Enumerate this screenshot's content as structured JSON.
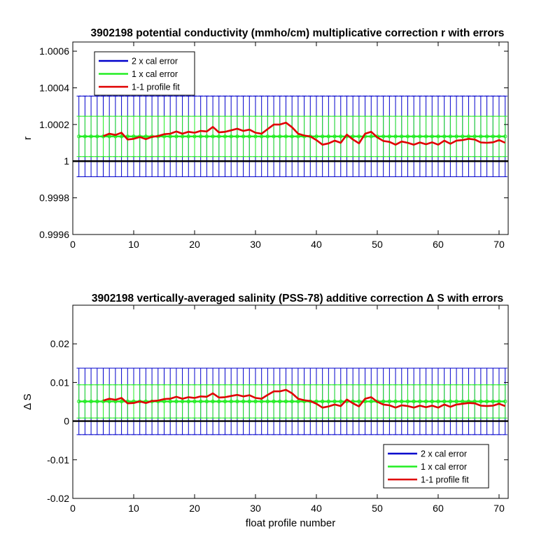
{
  "colors": {
    "two_x_cal_error": "#0000cc",
    "one_x_cal_error": "#22ee22",
    "profile_fit": "#e00000",
    "baseline": "#000000",
    "background": "#ffffff"
  },
  "chart_data": [
    {
      "type": "line",
      "title": "3902198 potential conductivity (mmho/cm) multiplicative correction r with errors",
      "xlabel": "",
      "ylabel": "r",
      "xlim": [
        0,
        71.5
      ],
      "ylim": [
        0.9996,
        1.00065
      ],
      "xticks": [
        0,
        10,
        20,
        30,
        40,
        50,
        60,
        70
      ],
      "yticks": [
        0.9996,
        0.9998,
        1,
        1.0002,
        1.0004,
        1.0006
      ],
      "ytick_labels": [
        "0.9996",
        "0.9998",
        "1",
        "1.0002",
        "1.0004",
        "1.0006"
      ],
      "legend_placement": "top-left",
      "legend": [
        "2 x cal error",
        "1 x cal error",
        "1-1 profile fit"
      ],
      "baseline": 1,
      "errorbars": {
        "x_range": [
          1,
          71
        ],
        "center": 1.000135,
        "two_x_cal_error": 0.00022,
        "one_x_cal_error": 0.00011
      },
      "series": [
        {
          "name": "1-1 profile fit",
          "x": [
            5,
            6,
            7,
            8,
            9,
            10,
            11,
            12,
            13,
            14,
            15,
            16,
            17,
            18,
            19,
            20,
            21,
            22,
            23,
            24,
            25,
            26,
            27,
            28,
            29,
            30,
            31,
            32,
            33,
            34,
            35,
            36,
            37,
            38,
            39,
            40,
            41,
            42,
            43,
            44,
            45,
            46,
            47,
            48,
            49,
            50,
            51,
            52,
            53,
            54,
            55,
            56,
            57,
            58,
            59,
            60,
            61,
            62,
            63,
            64,
            65,
            66,
            67,
            68,
            69,
            70,
            71
          ],
          "values": [
            1.000137,
            1.00015,
            1.000143,
            1.000155,
            1.000118,
            1.000122,
            1.000132,
            1.00012,
            1.000133,
            1.000137,
            1.000147,
            1.00015,
            1.000162,
            1.00015,
            1.00016,
            1.000155,
            1.000165,
            1.000162,
            1.000187,
            1.000157,
            1.00016,
            1.000168,
            1.000177,
            1.000165,
            1.000172,
            1.000155,
            1.00015,
            1.000175,
            1.0002,
            1.0002,
            1.00021,
            1.000185,
            1.00015,
            1.00014,
            1.000135,
            1.000115,
            1.00009,
            1.000097,
            1.000112,
            1.0001,
            1.000145,
            1.000118,
            1.000097,
            1.00015,
            1.00016,
            1.00013,
            1.00011,
            1.000105,
            1.00009,
            1.000107,
            1.0001,
            1.00009,
            1.000102,
            1.000092,
            1.000103,
            1.00009,
            1.000112,
            1.000095,
            1.000112,
            1.000115,
            1.000122,
            1.000118,
            1.000102,
            1.0001,
            1.000103,
            1.000115,
            1.0001
          ]
        }
      ]
    },
    {
      "type": "line",
      "title": "3902198 vertically-averaged salinity (PSS-78) additive correction Δ S with errors",
      "xlabel": "float profile number",
      "ylabel": "Δ S",
      "xlim": [
        0,
        71.5
      ],
      "ylim": [
        -0.02,
        0.03
      ],
      "xticks": [
        0,
        10,
        20,
        30,
        40,
        50,
        60,
        70
      ],
      "yticks": [
        -0.02,
        -0.01,
        0,
        0.01,
        0.02
      ],
      "ytick_labels": [
        "-0.02",
        "-0.01",
        "0",
        "0.01",
        "0.02"
      ],
      "legend_placement": "bottom-right",
      "legend": [
        "2 x cal error",
        "1 x cal error",
        "1-1 profile fit"
      ],
      "baseline": 0,
      "errorbars": {
        "x_range": [
          1,
          71
        ],
        "center": 0.0051,
        "two_x_cal_error": 0.0086,
        "one_x_cal_error": 0.0043
      },
      "series": [
        {
          "name": "1-1 profile fit",
          "x": [
            5,
            6,
            7,
            8,
            9,
            10,
            11,
            12,
            13,
            14,
            15,
            16,
            17,
            18,
            19,
            20,
            21,
            22,
            23,
            24,
            25,
            26,
            27,
            28,
            29,
            30,
            31,
            32,
            33,
            34,
            35,
            36,
            37,
            38,
            39,
            40,
            41,
            42,
            43,
            44,
            45,
            46,
            47,
            48,
            49,
            50,
            51,
            52,
            53,
            54,
            55,
            56,
            57,
            58,
            59,
            60,
            61,
            62,
            63,
            64,
            65,
            66,
            67,
            68,
            69,
            70,
            71
          ],
          "values": [
            0.0053,
            0.0058,
            0.0055,
            0.006,
            0.0046,
            0.0047,
            0.0051,
            0.0047,
            0.0052,
            0.0053,
            0.0057,
            0.0058,
            0.0063,
            0.0058,
            0.0062,
            0.006,
            0.0064,
            0.0063,
            0.0072,
            0.0061,
            0.0062,
            0.0065,
            0.0068,
            0.0064,
            0.0067,
            0.006,
            0.0058,
            0.0068,
            0.0077,
            0.0077,
            0.0081,
            0.0072,
            0.0058,
            0.0054,
            0.0052,
            0.0045,
            0.0035,
            0.0038,
            0.0043,
            0.0039,
            0.0056,
            0.0046,
            0.0038,
            0.0058,
            0.0062,
            0.005,
            0.0043,
            0.0041,
            0.0035,
            0.0041,
            0.0039,
            0.0035,
            0.004,
            0.0036,
            0.004,
            0.0035,
            0.0043,
            0.0037,
            0.0043,
            0.0045,
            0.0047,
            0.0046,
            0.004,
            0.0039,
            0.004,
            0.0045,
            0.0039
          ]
        }
      ]
    }
  ]
}
